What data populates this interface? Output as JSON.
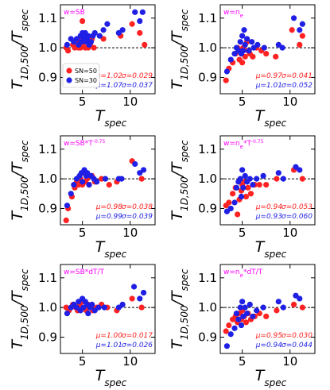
{
  "colors": {
    "sn50": "#ff2222",
    "sn30": "#1f1fe6",
    "weight": "#ff00ff",
    "axis": "#000000"
  },
  "chart_data": [
    {
      "type": "scatter",
      "weight_label": "w=SB",
      "xlabel": "T_spec",
      "ylabel": "T_1D,500/T_spec",
      "xlim": [
        2.7,
        12.6
      ],
      "ylim": [
        0.845,
        1.145
      ],
      "xticks": [
        5,
        10
      ],
      "yticks": [
        0.9,
        1.0,
        1.1
      ],
      "x_tick_labels": [
        "5",
        "10"
      ],
      "y_tick_labels": [
        "0.9",
        "1.0",
        "1.1"
      ],
      "reference_line": 1.0,
      "legend": {
        "position": "lower-left",
        "entries": [
          "SN=50",
          "SN=30"
        ]
      },
      "stats": {
        "mu_50": "μ=1.02",
        "sigma_50": "σ=0.029",
        "mu_30": "μ=1.07",
        "sigma_30": "σ=0.037"
      },
      "series": [
        {
          "name": "SN=50",
          "color": "#ff2222",
          "x": [
            3.3,
            3.5,
            4.0,
            4.2,
            4.5,
            4.6,
            4.8,
            4.9,
            5.0,
            5.0,
            5.2,
            5.3,
            5.4,
            5.5,
            5.6,
            5.8,
            6.0,
            6.2,
            7.2,
            9.0,
            10.2,
            11.0,
            11.5
          ],
          "y": [
            1.0,
            0.99,
            1.01,
            1.0,
            1.02,
            1.0,
            1.0,
            1.03,
            1.01,
            1.09,
            1.03,
            1.0,
            1.04,
            1.02,
            1.0,
            1.01,
            1.03,
            1.0,
            1.03,
            1.04,
            1.08,
            1.05,
            1.01
          ]
        },
        {
          "name": "SN=30",
          "color": "#1f1fe6",
          "x": [
            3.4,
            3.8,
            4.1,
            4.4,
            4.6,
            4.8,
            4.9,
            5.0,
            5.1,
            5.2,
            5.3,
            5.4,
            5.5,
            5.6,
            5.7,
            5.9,
            6.1,
            6.3,
            6.8,
            7.2,
            7.6,
            8.8,
            9.2,
            10.5,
            11.0,
            11.3
          ],
          "y": [
            1.01,
            1.03,
            1.02,
            1.03,
            1.01,
            1.04,
            1.02,
            1.05,
            1.03,
            1.04,
            1.05,
            1.02,
            1.03,
            1.04,
            1.01,
            1.02,
            1.04,
            1.05,
            1.04,
            1.06,
            1.08,
            1.05,
            1.06,
            1.12,
            1.09,
            1.12
          ]
        }
      ]
    },
    {
      "type": "scatter",
      "weight_label": "w=ne",
      "xlabel": "T_spec",
      "ylabel": "T_1D,500/T_spec",
      "xlim": [
        2.7,
        12.6
      ],
      "ylim": [
        0.845,
        1.145
      ],
      "xticks": [
        5,
        10
      ],
      "yticks": [
        0.9,
        1.0,
        1.1
      ],
      "x_tick_labels": [
        "5",
        "10"
      ],
      "y_tick_labels": [
        "0.9",
        "1.0",
        "1.1"
      ],
      "reference_line": 1.0,
      "stats": {
        "mu_50": "μ=0.97",
        "sigma_50": "σ=0.041",
        "mu_30": "μ=1.01",
        "sigma_30": "σ=0.052"
      },
      "series": [
        {
          "name": "SN=50",
          "color": "#ff2222",
          "x": [
            3.3,
            3.6,
            4.0,
            4.3,
            4.5,
            4.7,
            4.8,
            5.0,
            5.1,
            5.3,
            5.5,
            5.6,
            5.8,
            6.1,
            6.5,
            7.0,
            7.5,
            8.5,
            10.2,
            11.0,
            11.3
          ],
          "y": [
            0.89,
            0.93,
            0.95,
            0.98,
            1.0,
            0.96,
            0.99,
            0.95,
            1.0,
            0.97,
            1.02,
            0.99,
            0.98,
            0.97,
            1.0,
            0.99,
            0.98,
            0.97,
            1.06,
            1.01,
            1.04
          ]
        },
        {
          "name": "SN=30",
          "color": "#1f1fe6",
          "x": [
            3.4,
            3.8,
            4.2,
            4.4,
            4.6,
            4.8,
            4.9,
            5.0,
            5.1,
            5.2,
            5.3,
            5.5,
            5.7,
            6.0,
            6.2,
            6.6,
            7.3,
            8.8,
            9.2,
            10.4,
            11.0,
            11.3
          ],
          "y": [
            0.92,
            0.96,
            0.98,
            1.0,
            0.99,
            1.02,
            0.98,
            1.04,
            0.99,
            1.06,
            1.01,
            1.03,
            0.99,
            1.02,
            1.0,
            1.01,
            1.0,
            1.01,
            1.0,
            1.1,
            1.06,
            1.08
          ]
        }
      ]
    },
    {
      "type": "scatter",
      "weight_label": "w=SB*T^-0.75",
      "xlabel": "T_spec",
      "ylabel": "T_1D,500/T_spec",
      "xlim": [
        2.7,
        12.6
      ],
      "ylim": [
        0.845,
        1.145
      ],
      "xticks": [
        5,
        10
      ],
      "yticks": [
        0.9,
        1.0,
        1.1
      ],
      "x_tick_labels": [
        "5",
        "10"
      ],
      "y_tick_labels": [
        "0.9",
        "1.0",
        "1.1"
      ],
      "reference_line": 1.0,
      "stats": {
        "mu_50": "μ=0.98",
        "sigma_50": "σ=0.038",
        "mu_30": "μ=0.99",
        "sigma_30": "σ=0.039"
      },
      "series": [
        {
          "name": "SN=50",
          "color": "#ff2222",
          "x": [
            3.3,
            3.5,
            3.9,
            4.2,
            4.4,
            4.6,
            4.8,
            5.0,
            5.1,
            5.3,
            5.5,
            5.7,
            6.0,
            6.3,
            7.0,
            7.8,
            8.6,
            10.2,
            11.2
          ],
          "y": [
            0.86,
            0.9,
            0.94,
            0.97,
            0.99,
            0.98,
            1.0,
            0.98,
            1.02,
            0.99,
            1.0,
            0.98,
            1.01,
            0.99,
            1.0,
            0.98,
            0.99,
            1.06,
            1.0
          ]
        },
        {
          "name": "SN=30",
          "color": "#1f1fe6",
          "x": [
            3.4,
            3.8,
            4.1,
            4.4,
            4.7,
            4.9,
            5.0,
            5.2,
            5.4,
            5.5,
            5.7,
            5.9,
            6.2,
            6.5,
            7.4,
            8.8,
            9.1,
            10.5,
            11.0,
            11.4
          ],
          "y": [
            0.91,
            0.95,
            0.98,
            1.0,
            1.01,
            1.02,
            0.99,
            1.03,
            1.01,
            1.02,
            0.98,
            1.01,
            1.0,
            0.99,
            1.0,
            1.0,
            1.0,
            1.05,
            1.02,
            1.03
          ]
        }
      ]
    },
    {
      "type": "scatter",
      "weight_label": "w=ne*T^-0.75",
      "xlabel": "T_spec",
      "ylabel": "T_1D,500/T_spec",
      "xlim": [
        2.7,
        12.6
      ],
      "ylim": [
        0.845,
        1.145
      ],
      "xticks": [
        5,
        10
      ],
      "yticks": [
        0.9,
        1.0,
        1.1
      ],
      "x_tick_labels": [
        "5",
        "10"
      ],
      "y_tick_labels": [
        "0.9",
        "1.0",
        "1.1"
      ],
      "reference_line": 1.0,
      "stats": {
        "mu_50": "μ=0.94",
        "sigma_50": "σ=0.053",
        "mu_30": "μ=0.93",
        "sigma_30": "σ=0.060"
      },
      "series": [
        {
          "name": "SN=50",
          "color": "#ff2222",
          "x": [
            3.3,
            3.6,
            4.0,
            4.3,
            4.5,
            4.7,
            4.9,
            5.0,
            5.2,
            5.4,
            5.6,
            5.9,
            6.3,
            6.8,
            7.5,
            8.6,
            10.4,
            11.3
          ],
          "y": [
            0.91,
            0.92,
            0.95,
            0.97,
            0.88,
            0.93,
            0.96,
            0.98,
            0.99,
            0.94,
            0.97,
            0.95,
            0.98,
            0.98,
            0.98,
            1.0,
            1.03,
            1.0
          ]
        },
        {
          "name": "SN=30",
          "color": "#1f1fe6",
          "x": [
            3.4,
            3.8,
            4.2,
            4.4,
            4.6,
            4.8,
            4.9,
            5.0,
            5.1,
            5.3,
            5.5,
            5.8,
            6.1,
            6.5,
            7.2,
            8.8,
            9.3,
            10.6,
            11.0
          ],
          "y": [
            0.89,
            0.9,
            0.92,
            0.97,
            0.99,
            1.0,
            0.94,
            1.03,
            0.97,
            1.01,
            0.99,
            1.0,
            0.98,
            1.0,
            1.01,
            1.02,
            1.0,
            1.04,
            1.03
          ]
        }
      ]
    },
    {
      "type": "scatter",
      "weight_label": "w=SB*dT/T",
      "xlabel": "T_spec",
      "ylabel": "T_1D,500/T_spec",
      "xlim": [
        2.7,
        12.6
      ],
      "ylim": [
        0.845,
        1.145
      ],
      "xticks": [
        5,
        10
      ],
      "yticks": [
        0.9,
        1.0,
        1.1
      ],
      "x_tick_labels": [
        "5",
        "10"
      ],
      "y_tick_labels": [
        "0.9",
        "1.0",
        "1.1"
      ],
      "reference_line": 1.0,
      "stats": {
        "mu_50": "μ=1.00",
        "sigma_50": "σ=0.017",
        "mu_30": "μ=1.01",
        "sigma_30": "σ=0.026"
      },
      "series": [
        {
          "name": "SN=50",
          "color": "#ff2222",
          "x": [
            3.3,
            3.6,
            4.0,
            4.3,
            4.5,
            4.7,
            4.9,
            5.0,
            5.2,
            5.4,
            5.6,
            5.8,
            6.1,
            6.5,
            7.0,
            7.6,
            8.6,
            10.2,
            11.2
          ],
          "y": [
            1.0,
            0.99,
            1.01,
            1.0,
            0.99,
            1.01,
            1.0,
            1.02,
            1.0,
            0.99,
            1.01,
            1.0,
            0.99,
            1.0,
            1.01,
            1.0,
            0.99,
            1.03,
            1.0
          ]
        },
        {
          "name": "SN=30",
          "color": "#1f1fe6",
          "x": [
            3.4,
            3.8,
            4.1,
            4.4,
            4.6,
            4.8,
            5.0,
            5.1,
            5.3,
            5.5,
            5.6,
            5.8,
            6.0,
            6.3,
            6.7,
            7.3,
            8.8,
            9.2,
            10.4,
            11.0,
            11.4
          ],
          "y": [
            0.98,
            1.0,
            1.01,
            1.0,
            1.02,
            0.99,
            1.03,
            1.0,
            1.02,
            1.01,
            0.98,
            1.0,
            1.01,
            0.99,
            1.0,
            1.0,
            1.0,
            1.01,
            1.07,
            1.03,
            1.05
          ]
        }
      ]
    },
    {
      "type": "scatter",
      "weight_label": "w=ne*dT/T",
      "xlabel": "T_spec",
      "ylabel": "T_1D,500/T_spec",
      "xlim": [
        2.7,
        12.6
      ],
      "ylim": [
        0.845,
        1.145
      ],
      "xticks": [
        5,
        10
      ],
      "yticks": [
        0.9,
        1.0,
        1.1
      ],
      "x_tick_labels": [
        "5",
        "10"
      ],
      "y_tick_labels": [
        "0.9",
        "1.0",
        "1.1"
      ],
      "reference_line": 1.0,
      "stats": {
        "mu_50": "μ=0.95",
        "sigma_50": "σ=0.030",
        "mu_30": "μ=0.94",
        "sigma_30": "σ=0.044"
      },
      "series": [
        {
          "name": "SN=50",
          "color": "#ff2222",
          "x": [
            3.3,
            3.6,
            4.0,
            4.3,
            4.5,
            4.7,
            4.9,
            5.0,
            5.2,
            5.4,
            5.6,
            5.9,
            6.3,
            6.8,
            7.5,
            8.6,
            10.4,
            11.3
          ],
          "y": [
            0.92,
            0.94,
            0.96,
            0.97,
            0.95,
            0.98,
            0.96,
            0.99,
            0.97,
            0.95,
            0.98,
            0.96,
            0.97,
            0.98,
            0.97,
            0.99,
            1.01,
            1.0
          ]
        },
        {
          "name": "SN=30",
          "color": "#1f1fe6",
          "x": [
            3.4,
            3.8,
            4.2,
            4.4,
            4.6,
            4.8,
            4.9,
            5.0,
            5.1,
            5.3,
            5.5,
            5.8,
            6.1,
            6.5,
            7.2,
            8.8,
            9.3,
            10.6,
            11.0
          ],
          "y": [
            0.87,
            0.91,
            0.93,
            0.98,
            0.96,
            1.0,
            0.94,
            1.02,
            0.97,
            1.0,
            0.98,
            1.01,
            0.97,
            0.99,
            1.0,
            1.02,
            1.0,
            1.04,
            1.03
          ]
        }
      ]
    }
  ]
}
